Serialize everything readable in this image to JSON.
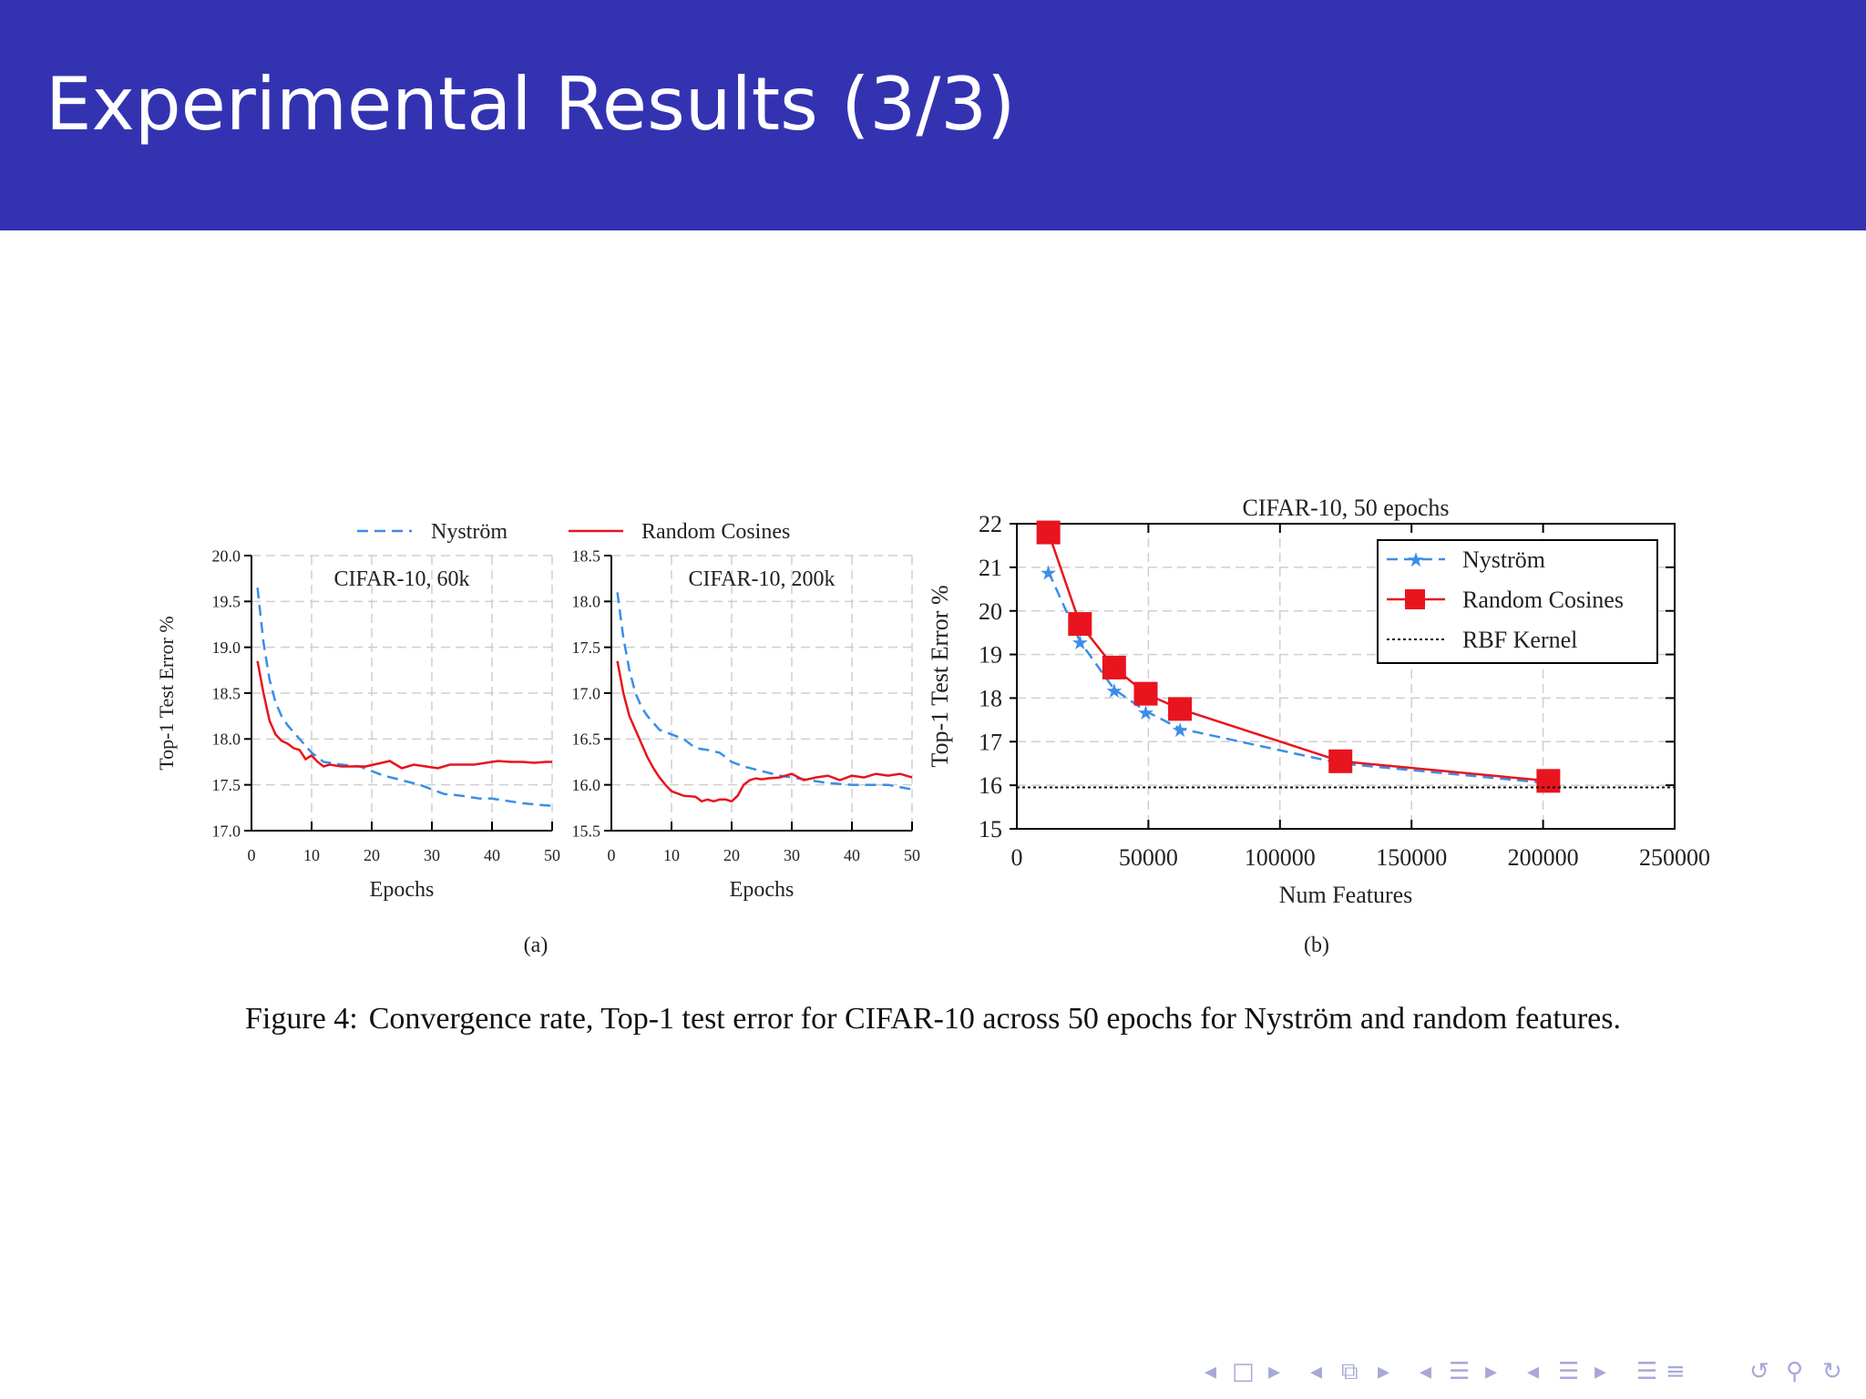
{
  "slide": {
    "title": "Experimental Results (3/3)"
  },
  "figure": {
    "caption_label": "Figure 4:",
    "caption_text": "Convergence rate, Top-1 test error for CIFAR-10 across 50 epochs for Nyström and random features.",
    "subfig_a": "(a)",
    "subfig_b": "(b)",
    "legend_a": [
      "Nyström",
      "Random Cosines"
    ],
    "colors": {
      "nystrom": "#3a8ee8",
      "random": "#e8141e",
      "rbf": "#111111",
      "grid": "#cfcfcf"
    }
  },
  "chart_data": [
    {
      "type": "line",
      "title": "CIFAR-10, 60k",
      "xlabel": "Epochs",
      "ylabel": "Top-1 Test Error %",
      "xlim": [
        0,
        50
      ],
      "ylim": [
        17.0,
        20.0
      ],
      "xticks": [
        0,
        10,
        20,
        30,
        40,
        50
      ],
      "yticks": [
        17.0,
        17.5,
        18.0,
        18.5,
        19.0,
        19.5,
        20.0
      ],
      "ytick_labels": [
        "17.0",
        "17.5",
        "18.0",
        "18.5",
        "19.0",
        "19.5",
        "20.0"
      ],
      "grid": true,
      "series": [
        {
          "name": "Nyström",
          "style": "dashed",
          "x": [
            1,
            2,
            3,
            4,
            5,
            6,
            8,
            10,
            12,
            15,
            18,
            20,
            22,
            25,
            28,
            30,
            32,
            35,
            38,
            40,
            42,
            45,
            48,
            50
          ],
          "y": [
            19.65,
            19.05,
            18.65,
            18.4,
            18.25,
            18.15,
            18.0,
            17.85,
            17.75,
            17.72,
            17.7,
            17.65,
            17.6,
            17.55,
            17.5,
            17.45,
            17.4,
            17.38,
            17.35,
            17.35,
            17.33,
            17.3,
            17.28,
            17.27
          ]
        },
        {
          "name": "Random Cosines",
          "style": "solid",
          "x": [
            1,
            2,
            3,
            4,
            5,
            6,
            7,
            8,
            9,
            10,
            11,
            12,
            13,
            15,
            17,
            19,
            21,
            23,
            25,
            27,
            29,
            31,
            33,
            35,
            37,
            39,
            41,
            43,
            45,
            47,
            49,
            50
          ],
          "y": [
            18.85,
            18.5,
            18.2,
            18.05,
            17.98,
            17.95,
            17.9,
            17.88,
            17.78,
            17.82,
            17.75,
            17.7,
            17.72,
            17.7,
            17.7,
            17.7,
            17.73,
            17.76,
            17.68,
            17.72,
            17.7,
            17.68,
            17.72,
            17.72,
            17.72,
            17.74,
            17.76,
            17.75,
            17.75,
            17.74,
            17.75,
            17.75
          ]
        }
      ]
    },
    {
      "type": "line",
      "title": "CIFAR-10, 200k",
      "xlabel": "Epochs",
      "ylabel": "",
      "xlim": [
        0,
        50
      ],
      "ylim": [
        15.5,
        18.5
      ],
      "xticks": [
        0,
        10,
        20,
        30,
        40,
        50
      ],
      "yticks": [
        15.5,
        16.0,
        16.5,
        17.0,
        17.5,
        18.0,
        18.5
      ],
      "ytick_labels": [
        "15.5",
        "16.0",
        "16.5",
        "17.0",
        "17.5",
        "18.0",
        "18.5"
      ],
      "grid": true,
      "series": [
        {
          "name": "Nyström",
          "style": "dashed",
          "x": [
            1,
            2,
            3,
            4,
            5,
            6,
            8,
            10,
            12,
            14,
            16,
            18,
            20,
            22,
            25,
            28,
            30,
            33,
            36,
            40,
            43,
            46,
            50
          ],
          "y": [
            18.1,
            17.6,
            17.25,
            17.0,
            16.85,
            16.75,
            16.6,
            16.55,
            16.5,
            16.4,
            16.38,
            16.35,
            16.25,
            16.2,
            16.15,
            16.1,
            16.08,
            16.05,
            16.02,
            16.0,
            16.0,
            16.0,
            15.95
          ]
        },
        {
          "name": "Random Cosines",
          "style": "solid",
          "x": [
            1,
            2,
            3,
            4,
            5,
            6,
            7,
            8,
            9,
            10,
            12,
            14,
            15,
            16,
            17,
            18,
            19,
            20,
            21,
            22,
            23,
            24,
            25,
            26,
            28,
            30,
            32,
            34,
            36,
            38,
            40,
            42,
            44,
            46,
            48,
            50
          ],
          "y": [
            17.35,
            17.0,
            16.75,
            16.6,
            16.45,
            16.3,
            16.18,
            16.08,
            16.0,
            15.93,
            15.88,
            15.87,
            15.82,
            15.84,
            15.82,
            15.84,
            15.84,
            15.82,
            15.88,
            16.0,
            16.05,
            16.07,
            16.06,
            16.07,
            16.08,
            16.12,
            16.05,
            16.08,
            16.1,
            16.05,
            16.1,
            16.08,
            16.12,
            16.1,
            16.12,
            16.08
          ]
        }
      ]
    },
    {
      "type": "line",
      "title": "CIFAR-10, 50 epochs",
      "xlabel": "Num Features",
      "ylabel": "Top-1 Test Error %",
      "xlim": [
        0,
        250000
      ],
      "ylim": [
        15,
        22
      ],
      "xticks": [
        0,
        50000,
        100000,
        150000,
        200000,
        250000
      ],
      "yticks": [
        15,
        16,
        17,
        18,
        19,
        20,
        21,
        22
      ],
      "ytick_labels": [
        "15",
        "16",
        "17",
        "18",
        "19",
        "20",
        "21",
        "22"
      ],
      "grid": true,
      "legend_position": "top-right",
      "series": [
        {
          "name": "Nyström",
          "style": "dashed",
          "marker": "star",
          "x": [
            12000,
            24000,
            37000,
            49000,
            62000,
            123000,
            202000
          ],
          "y": [
            20.9,
            19.3,
            18.2,
            17.7,
            17.3,
            16.5,
            16.05
          ]
        },
        {
          "name": "Random Cosines",
          "style": "solid",
          "marker": "square",
          "x": [
            12000,
            24000,
            37000,
            49000,
            62000,
            123000,
            202000
          ],
          "y": [
            21.8,
            19.7,
            18.7,
            18.1,
            17.75,
            16.55,
            16.1
          ]
        },
        {
          "name": "RBF Kernel",
          "style": "dotted",
          "marker": "none",
          "x": [
            0,
            250000
          ],
          "y": [
            15.95,
            15.95
          ]
        }
      ]
    }
  ],
  "nav": {
    "icons": [
      "triangle-left-icon",
      "frame-icon",
      "triangle-right-icon",
      "triangle-left-icon",
      "subsection-icon",
      "triangle-right-icon",
      "triangle-left-icon",
      "section-icon",
      "triangle-right-icon",
      "triangle-left-icon",
      "list-icon",
      "triangle-right-icon",
      "align-icon",
      "menu-icon",
      "undo-icon",
      "search-icon",
      "redo-icon"
    ],
    "glyphs": [
      "◂",
      "□",
      "▸",
      "◂",
      "⧉",
      "▸",
      "◂",
      "☰",
      "▸",
      "◂",
      "☰",
      "▸",
      "☰",
      "≡",
      "↺",
      "⚲",
      "↻"
    ]
  }
}
